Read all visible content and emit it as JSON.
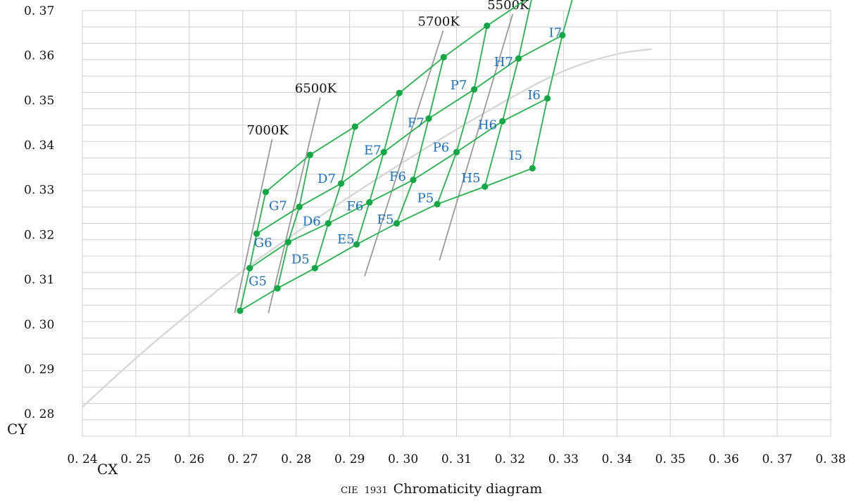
{
  "chart_data": {
    "type": "scatter",
    "title": "",
    "caption_prefix": "CIE",
    "caption_year": "1931",
    "caption_text": "Chromaticity diagram",
    "xlabel": "CX",
    "ylabel": "CY",
    "xlim": [
      0.24,
      0.38
    ],
    "ylim": [
      0.275,
      0.37
    ],
    "grid": true,
    "x_ticks": [
      "0. 24",
      "0. 25",
      "0. 26",
      "0. 27",
      "0. 28",
      "0. 29",
      "0. 30",
      "0. 31",
      "0. 32",
      "0. 33",
      "0. 34",
      "0. 35",
      "0. 36",
      "0. 37",
      "0. 38"
    ],
    "y_ticks": [
      "0. 28",
      "0. 29",
      "0. 30",
      "0. 31",
      "0. 32",
      "0. 33",
      "0. 34",
      "0. 35",
      "0. 36",
      "0. 37"
    ],
    "colors": {
      "grid": "#cfcfcf",
      "locus": "#d8d8d8",
      "bin_grid": "#22b34a",
      "bin_point": "#14a844",
      "cct_line": "#9a9a9a",
      "bin_label": "#1a6fc0"
    },
    "planckian_locus": [
      [
        0.24,
        0.2815
      ],
      [
        0.25,
        0.2925
      ],
      [
        0.26,
        0.3025
      ],
      [
        0.27,
        0.312
      ],
      [
        0.28,
        0.3205
      ],
      [
        0.29,
        0.3285
      ],
      [
        0.3,
        0.3362
      ],
      [
        0.31,
        0.3435
      ],
      [
        0.32,
        0.3505
      ],
      [
        0.33,
        0.3568
      ],
      [
        0.34,
        0.3605
      ],
      [
        0.3465,
        0.3614
      ]
    ],
    "cct_lines": [
      {
        "label": "7000K",
        "x1": 0.2685,
        "y1": 0.3025,
        "x2": 0.2755,
        "y2": 0.3413
      },
      {
        "label": "6500K",
        "x1": 0.2748,
        "y1": 0.3025,
        "x2": 0.2845,
        "y2": 0.3506
      },
      {
        "label": "5700K",
        "x1": 0.2928,
        "y1": 0.3107,
        "x2": 0.3075,
        "y2": 0.3655
      },
      {
        "label": "5500K",
        "x1": 0.3068,
        "y1": 0.3142,
        "x2": 0.3205,
        "y2": 0.3692
      }
    ],
    "grid_points": [
      [
        [
          0.2695,
          0.303
        ],
        [
          0.2713,
          0.3125
        ],
        [
          0.2726,
          0.3202
        ],
        [
          0.2743,
          0.3295
        ]
      ],
      [
        [
          0.2765,
          0.308
        ],
        [
          0.2785,
          0.3183
        ],
        [
          0.2806,
          0.3262
        ],
        [
          0.2826,
          0.3378
        ]
      ],
      [
        [
          0.2835,
          0.3125
        ],
        [
          0.286,
          0.3225
        ],
        [
          0.2884,
          0.3314
        ],
        [
          0.291,
          0.3441
        ]
      ],
      [
        [
          0.2913,
          0.3178
        ],
        [
          0.2937,
          0.3272
        ],
        [
          0.2964,
          0.3384
        ],
        [
          0.2993,
          0.3516
        ]
      ],
      [
        [
          0.2988,
          0.3225
        ],
        [
          0.3019,
          0.3322
        ],
        [
          0.3048,
          0.3459
        ],
        [
          0.3076,
          0.3596
        ]
      ],
      [
        [
          0.3064,
          0.3268
        ],
        [
          0.31,
          0.3384
        ],
        [
          0.3133,
          0.3524
        ],
        [
          0.3157,
          0.3666
        ]
      ],
      [
        [
          0.3153,
          0.3307
        ],
        [
          0.3186,
          0.3453
        ],
        [
          0.3216,
          0.3593
        ],
        [
          0.3242,
          0.3734
        ]
      ],
      [
        [
          0.3242,
          0.3348
        ],
        [
          0.327,
          0.3504
        ],
        [
          0.3298,
          0.3645
        ],
        [
          0.3331,
          0.3787
        ]
      ]
    ],
    "bin_labels": [
      {
        "text": "G5",
        "x": 0.2728,
        "y": 0.3095
      },
      {
        "text": "G6",
        "x": 0.2738,
        "y": 0.318
      },
      {
        "text": "G7",
        "x": 0.2766,
        "y": 0.3263
      },
      {
        "text": "D5",
        "x": 0.2808,
        "y": 0.3143
      },
      {
        "text": "D6",
        "x": 0.2829,
        "y": 0.3228
      },
      {
        "text": "D7",
        "x": 0.2857,
        "y": 0.3323
      },
      {
        "text": "E5",
        "x": 0.2893,
        "y": 0.3188
      },
      {
        "text": "F6",
        "x": 0.291,
        "y": 0.3262
      },
      {
        "text": "E7",
        "x": 0.2943,
        "y": 0.3387
      },
      {
        "text": "F5",
        "x": 0.2967,
        "y": 0.3232
      },
      {
        "text": "F6",
        "x": 0.299,
        "y": 0.3328
      },
      {
        "text": "F7",
        "x": 0.3024,
        "y": 0.3448
      },
      {
        "text": "P5",
        "x": 0.3042,
        "y": 0.328
      },
      {
        "text": "P6",
        "x": 0.3071,
        "y": 0.3393
      },
      {
        "text": "P7",
        "x": 0.3104,
        "y": 0.3532
      },
      {
        "text": "H5",
        "x": 0.3127,
        "y": 0.3325
      },
      {
        "text": "H6",
        "x": 0.3158,
        "y": 0.3443
      },
      {
        "text": "H7",
        "x": 0.3188,
        "y": 0.3584
      },
      {
        "text": "I5",
        "x": 0.3211,
        "y": 0.3375
      },
      {
        "text": "I6",
        "x": 0.3245,
        "y": 0.351
      },
      {
        "text": "I7",
        "x": 0.3285,
        "y": 0.3649
      }
    ]
  }
}
